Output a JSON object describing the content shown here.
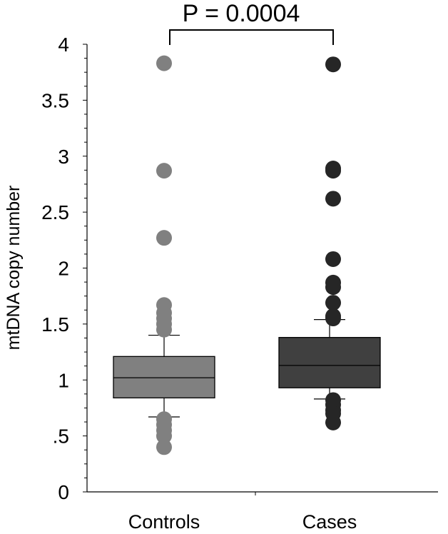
{
  "chart_data": {
    "type": "box",
    "title": "",
    "annotation": "P = 0.0004",
    "xlabel": "",
    "ylabel": "mtDNA copy number",
    "ylim": [
      0,
      4
    ],
    "yticks": [
      0,
      0.5,
      1,
      1.5,
      2,
      2.5,
      3,
      3.5,
      4
    ],
    "ytick_labels": [
      "0",
      ".5",
      "1",
      "1.5",
      "2",
      "2.5",
      "3",
      "3.5",
      "4"
    ],
    "grid": false,
    "categories": [
      "Controls",
      "Cases"
    ],
    "series": [
      {
        "name": "Controls",
        "box_color": "#808080",
        "point_color": "#808080",
        "q1": 0.84,
        "median": 1.02,
        "q3": 1.21,
        "whisker_low": 0.67,
        "whisker_high": 1.4,
        "outliers": [
          3.83,
          2.87,
          2.27,
          1.67,
          1.6,
          1.55,
          1.5,
          1.45,
          0.65,
          0.6,
          0.55,
          0.5,
          0.4
        ]
      },
      {
        "name": "Cases",
        "box_color": "#404040",
        "point_color": "#262626",
        "q1": 0.93,
        "median": 1.13,
        "q3": 1.38,
        "whisker_low": 0.83,
        "whisker_high": 1.54,
        "outliers": [
          3.82,
          2.89,
          2.87,
          2.62,
          2.08,
          1.87,
          1.83,
          1.69,
          1.57,
          1.55,
          0.82,
          0.78,
          0.73,
          0.7,
          0.62
        ]
      }
    ]
  }
}
